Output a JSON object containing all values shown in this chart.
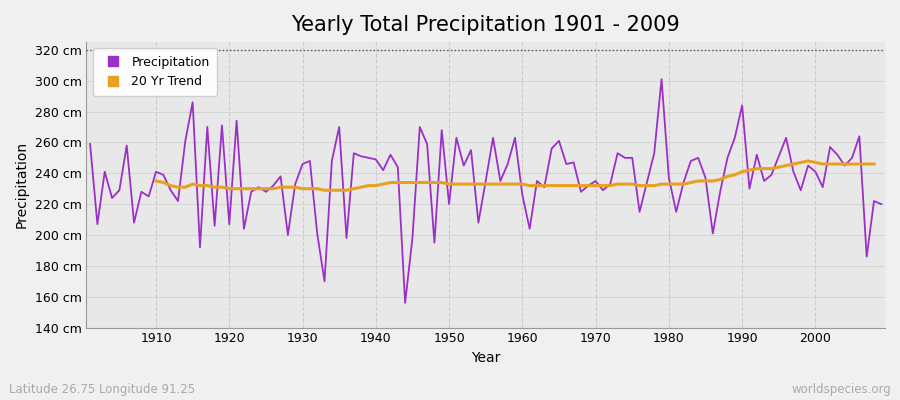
{
  "title": "Yearly Total Precipitation 1901 - 2009",
  "xlabel": "Year",
  "ylabel": "Precipitation",
  "subtitle_left": "Latitude 26.75 Longitude 91.25",
  "subtitle_right": "worldspecies.org",
  "years": [
    1901,
    1902,
    1903,
    1904,
    1905,
    1906,
    1907,
    1908,
    1909,
    1910,
    1911,
    1912,
    1913,
    1914,
    1915,
    1916,
    1917,
    1918,
    1919,
    1920,
    1921,
    1922,
    1923,
    1924,
    1925,
    1926,
    1927,
    1928,
    1929,
    1930,
    1931,
    1932,
    1933,
    1934,
    1935,
    1936,
    1937,
    1938,
    1939,
    1940,
    1941,
    1942,
    1943,
    1944,
    1945,
    1946,
    1947,
    1948,
    1949,
    1950,
    1951,
    1952,
    1953,
    1954,
    1955,
    1956,
    1957,
    1958,
    1959,
    1960,
    1961,
    1962,
    1963,
    1964,
    1965,
    1966,
    1967,
    1968,
    1969,
    1970,
    1971,
    1972,
    1973,
    1974,
    1975,
    1976,
    1977,
    1978,
    1979,
    1980,
    1981,
    1982,
    1983,
    1984,
    1985,
    1986,
    1987,
    1988,
    1989,
    1990,
    1991,
    1992,
    1993,
    1994,
    1995,
    1996,
    1997,
    1998,
    1999,
    2000,
    2001,
    2002,
    2003,
    2004,
    2005,
    2006,
    2007,
    2008,
    2009
  ],
  "precipitation": [
    259,
    207,
    241,
    224,
    229,
    258,
    208,
    228,
    225,
    241,
    239,
    229,
    222,
    261,
    286,
    192,
    270,
    206,
    271,
    207,
    274,
    204,
    228,
    231,
    228,
    232,
    238,
    200,
    233,
    246,
    248,
    201,
    170,
    248,
    270,
    198,
    253,
    251,
    250,
    249,
    242,
    252,
    244,
    156,
    198,
    270,
    259,
    195,
    268,
    220,
    263,
    245,
    255,
    208,
    235,
    263,
    235,
    246,
    263,
    226,
    204,
    235,
    231,
    256,
    261,
    246,
    247,
    228,
    232,
    235,
    229,
    233,
    253,
    250,
    250,
    215,
    234,
    253,
    301,
    237,
    215,
    234,
    248,
    250,
    237,
    201,
    228,
    250,
    263,
    284,
    230,
    252,
    235,
    239,
    251,
    263,
    241,
    229,
    245,
    241,
    231,
    257,
    252,
    245,
    250,
    264,
    186,
    222,
    220
  ],
  "trend": [
    null,
    null,
    null,
    null,
    null,
    null,
    null,
    null,
    null,
    235,
    234,
    232,
    231,
    231,
    233,
    232,
    232,
    231,
    231,
    230,
    230,
    230,
    230,
    230,
    230,
    230,
    231,
    231,
    231,
    230,
    230,
    230,
    229,
    229,
    229,
    229,
    230,
    231,
    232,
    232,
    233,
    234,
    234,
    234,
    234,
    234,
    234,
    234,
    234,
    233,
    233,
    233,
    233,
    233,
    233,
    233,
    233,
    233,
    233,
    233,
    232,
    232,
    232,
    232,
    232,
    232,
    232,
    232,
    232,
    232,
    232,
    232,
    233,
    233,
    233,
    232,
    232,
    232,
    233,
    233,
    233,
    233,
    234,
    235,
    235,
    235,
    236,
    238,
    239,
    241,
    242,
    243,
    243,
    243,
    244,
    245,
    246,
    247,
    248,
    247,
    246,
    246,
    246,
    246,
    246,
    246,
    246,
    246,
    null
  ],
  "precip_color": "#9b30c8",
  "trend_color": "#e8a020",
  "figure_bg_color": "#f0f0f0",
  "plot_bg_color": "#e8e8e8",
  "ylim": [
    140,
    325
  ],
  "yticks": [
    140,
    160,
    180,
    200,
    220,
    240,
    260,
    280,
    300,
    320
  ],
  "xticks": [
    1910,
    1920,
    1930,
    1940,
    1950,
    1960,
    1970,
    1980,
    1990,
    2000
  ],
  "vgrid_color": "#cccccc",
  "hgrid_color": "#cccccc",
  "top_dashed_y": 320,
  "title_fontsize": 15,
  "axis_label_fontsize": 10,
  "tick_fontsize": 9,
  "legend_fontsize": 9,
  "precip_linewidth": 1.3,
  "trend_linewidth": 2.2
}
